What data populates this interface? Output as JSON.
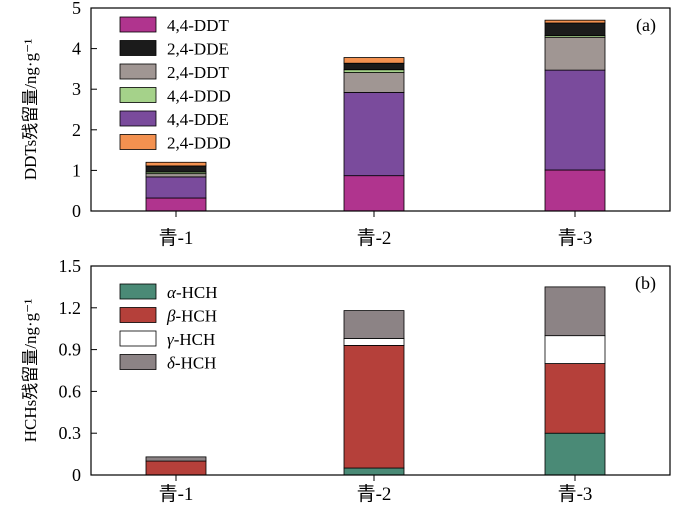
{
  "chart_data": [
    {
      "type": "bar",
      "stacked": true,
      "panel_label": "(a)",
      "ylabel": "DDTs残留量/ng·g⁻¹",
      "ylim": [
        0,
        5
      ],
      "yticks": [
        0,
        1,
        2,
        3,
        4,
        5
      ],
      "categories": [
        "青-1",
        "青-2",
        "青-3"
      ],
      "legend_position": "top-left",
      "series": [
        {
          "name": "4,4-DDT",
          "color": "#b0348e",
          "values": [
            0.32,
            0.87,
            1.01
          ]
        },
        {
          "name": "4,4-DDE",
          "color": "#7a4b9c",
          "values": [
            0.52,
            2.05,
            2.46
          ]
        },
        {
          "name": "2,4-DDT",
          "color": "#a09693",
          "values": [
            0.08,
            0.49,
            0.81
          ]
        },
        {
          "name": "4,4-DDD",
          "color": "#a5d28a",
          "values": [
            0.04,
            0.07,
            0.04
          ]
        },
        {
          "name": "2,4-DDE",
          "color": "#1b1b1b",
          "values": [
            0.15,
            0.16,
            0.31
          ]
        },
        {
          "name": "2,4-DDD",
          "color": "#f39150",
          "values": [
            0.09,
            0.14,
            0.07
          ]
        }
      ],
      "legend_order": [
        "4,4-DDT",
        "2,4-DDE",
        "2,4-DDT",
        "4,4-DDD",
        "4,4-DDE",
        "2,4-DDD"
      ]
    },
    {
      "type": "bar",
      "stacked": true,
      "panel_label": "(b)",
      "ylabel": "HCHs残留量/ng·g⁻¹",
      "ylim": [
        0,
        1.5
      ],
      "yticks": [
        "0",
        "0.3",
        "0.6",
        "0.9",
        "1.2",
        "1.5"
      ],
      "categories": [
        "青-1",
        "青-2",
        "青-3"
      ],
      "legend_position": "top-left",
      "series": [
        {
          "name": "α-HCH",
          "greek": "α",
          "suffix": "-HCH",
          "color": "#4a8a76",
          "values": [
            0.0,
            0.05,
            0.3
          ]
        },
        {
          "name": "β-HCH",
          "greek": "β",
          "suffix": "-HCH",
          "color": "#b5403a",
          "values": [
            0.1,
            0.88,
            0.5
          ]
        },
        {
          "name": "γ-HCH",
          "greek": "γ",
          "suffix": "-HCH",
          "color": "#ffffff",
          "values": [
            0.0,
            0.05,
            0.2
          ]
        },
        {
          "name": "δ-HCH",
          "greek": "δ",
          "suffix": "-HCH",
          "color": "#8c8385",
          "values": [
            0.03,
            0.2,
            0.35
          ]
        }
      ]
    }
  ]
}
